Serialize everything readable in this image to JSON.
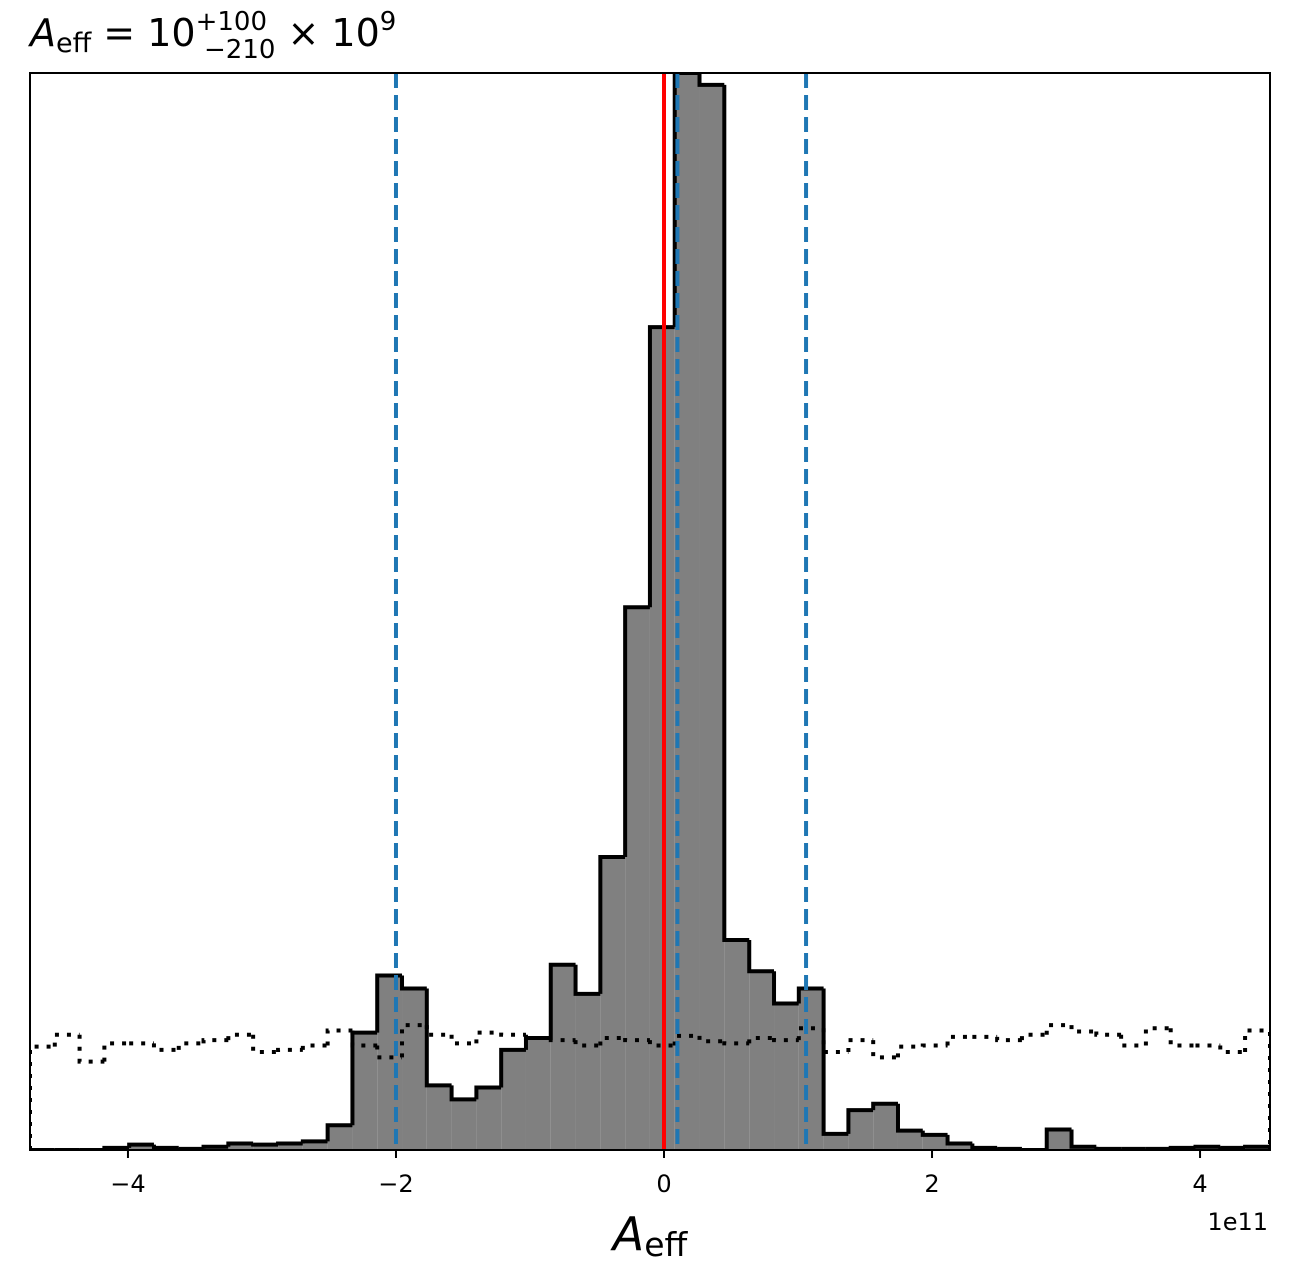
{
  "chart_data": {
    "type": "histogram",
    "title": {
      "symbol": "A",
      "symbol_sub": "eff",
      "text": " = 10",
      "sup": "+100",
      "sub": "−210",
      "tail": " × 10",
      "exp": "9"
    },
    "x_label": {
      "symbol": "A",
      "symbol_sub": "eff"
    },
    "x_offset_label": "1e11",
    "bins": [
      -4.731,
      -4.546,
      -4.361,
      -4.176,
      -3.991,
      -3.806,
      -3.621,
      -3.436,
      -3.251,
      -3.066,
      -2.88,
      -2.695,
      -2.51,
      -2.325,
      -2.14,
      -1.955,
      -1.77,
      -1.585,
      -1.4,
      -1.215,
      -1.03,
      -0.845,
      -0.66,
      -0.475,
      -0.29,
      -0.105,
      0.08,
      0.265,
      0.45,
      0.636,
      0.821,
      1.006,
      1.191,
      1.376,
      1.561,
      1.746,
      1.931,
      2.116,
      2.301,
      2.486,
      2.671,
      2.856,
      3.041,
      3.226,
      3.411,
      3.596,
      3.781,
      3.966,
      4.151,
      4.336,
      4.522
    ],
    "series": [
      {
        "histtype": "stepfilled",
        "color": "#808080",
        "edgecolor": "#000000",
        "values": [
          0,
          0,
          0,
          0.2,
          0.5,
          0.2,
          0.1,
          0.3,
          0.6,
          0.5,
          0.6,
          0.8,
          2.3,
          10.9,
          16.2,
          15.0,
          6.0,
          4.7,
          5.8,
          9.3,
          10.4,
          17.2,
          14.5,
          27.2,
          50.4,
          76.4,
          100,
          98.9,
          19.5,
          16.6,
          13.6,
          15.0,
          1.5,
          3.7,
          4.3,
          1.8,
          1.4,
          0.6,
          0.2,
          0.1,
          0,
          1.9,
          0.3,
          0.1,
          0.1,
          0.1,
          0.2,
          0.3,
          0.2,
          0.3
        ]
      },
      {
        "histtype": "step",
        "linestyle": "dotted",
        "edgecolor": "#000000",
        "values": [
          9.6,
          10.7,
          8.2,
          9.9,
          9.9,
          9.3,
          9.9,
          10.2,
          10.7,
          9.1,
          9.3,
          9.7,
          11.1,
          9.7,
          8.6,
          11.6,
          10.7,
          9.9,
          10.9,
          10.7,
          10.4,
          10.2,
          9.7,
          10.4,
          10.2,
          9.7,
          10.6,
          10.1,
          9.9,
          10.4,
          10.2,
          11.3,
          9.1,
          10.2,
          8.6,
          9.6,
          9.7,
          10.5,
          10.5,
          10.2,
          10.7,
          11.6,
          11.0,
          10.7,
          9.7,
          11.3,
          9.7,
          9.7,
          9.1,
          11.1
        ]
      }
    ],
    "vlines": [
      {
        "x": 0,
        "color": "#ff0000",
        "linestyle": "solid"
      },
      {
        "x": -2.0,
        "color": "#1f77b4",
        "linestyle": "dashed"
      },
      {
        "x": 0.1,
        "color": "#1f77b4",
        "linestyle": "dashed"
      },
      {
        "x": 1.06,
        "color": "#1f77b4",
        "linestyle": "dashed"
      }
    ],
    "xlim": [
      -4.731,
      4.522
    ],
    "ylim": [
      0,
      100
    ],
    "xticks": [
      {
        "value": -4,
        "label": "−4"
      },
      {
        "value": -2,
        "label": "−2"
      },
      0,
      2,
      4
    ]
  }
}
